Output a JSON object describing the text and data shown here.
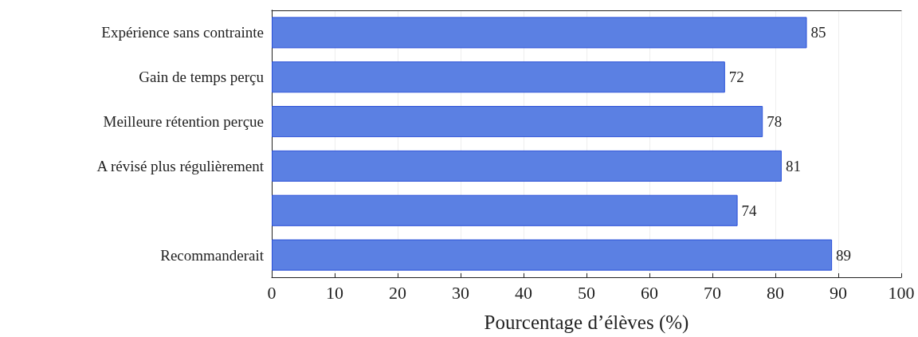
{
  "chart_data": {
    "type": "bar",
    "orientation": "horizontal",
    "xlabel": "Pourcentage d’élèves (%)",
    "categories": [
      "Expérience sans contrainte",
      "Gain de temps perçu",
      "Meilleure rétention perçue",
      "A révisé plus régulièrement",
      null,
      "Recommanderait"
    ],
    "values": [
      85,
      72,
      78,
      81,
      74,
      89
    ],
    "color": "#5b80e3",
    "xlim": [
      0,
      100
    ],
    "xticks": [
      0,
      10,
      20,
      30,
      40,
      50,
      60,
      70,
      80,
      90,
      100
    ],
    "grid": "x",
    "data_labels": true
  }
}
